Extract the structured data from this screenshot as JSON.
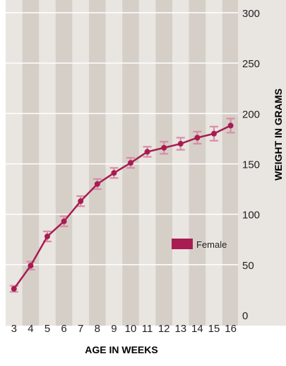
{
  "chart_data": {
    "type": "line",
    "title": "",
    "xlabel": "AGE IN WEEKS",
    "ylabel": "WEIGHT IN GRAMS",
    "x": [
      3,
      4,
      5,
      6,
      7,
      8,
      9,
      10,
      11,
      12,
      13,
      14,
      15,
      16
    ],
    "ylim": [
      0,
      300
    ],
    "yticks": [
      0,
      50,
      100,
      150,
      200,
      250,
      300
    ],
    "y_axis_side": "right",
    "grid": true,
    "legend_position": "middle-right",
    "series": [
      {
        "name": "Female",
        "color": "#a81c52",
        "errorbar_color": "#d98ea6",
        "values": [
          26,
          49,
          78,
          93,
          113,
          130,
          141,
          151,
          162,
          166,
          170,
          176,
          180,
          188
        ],
        "error": [
          3,
          4,
          5,
          5,
          5,
          5,
          5,
          5,
          5,
          6,
          6,
          6,
          7,
          7
        ]
      }
    ]
  }
}
